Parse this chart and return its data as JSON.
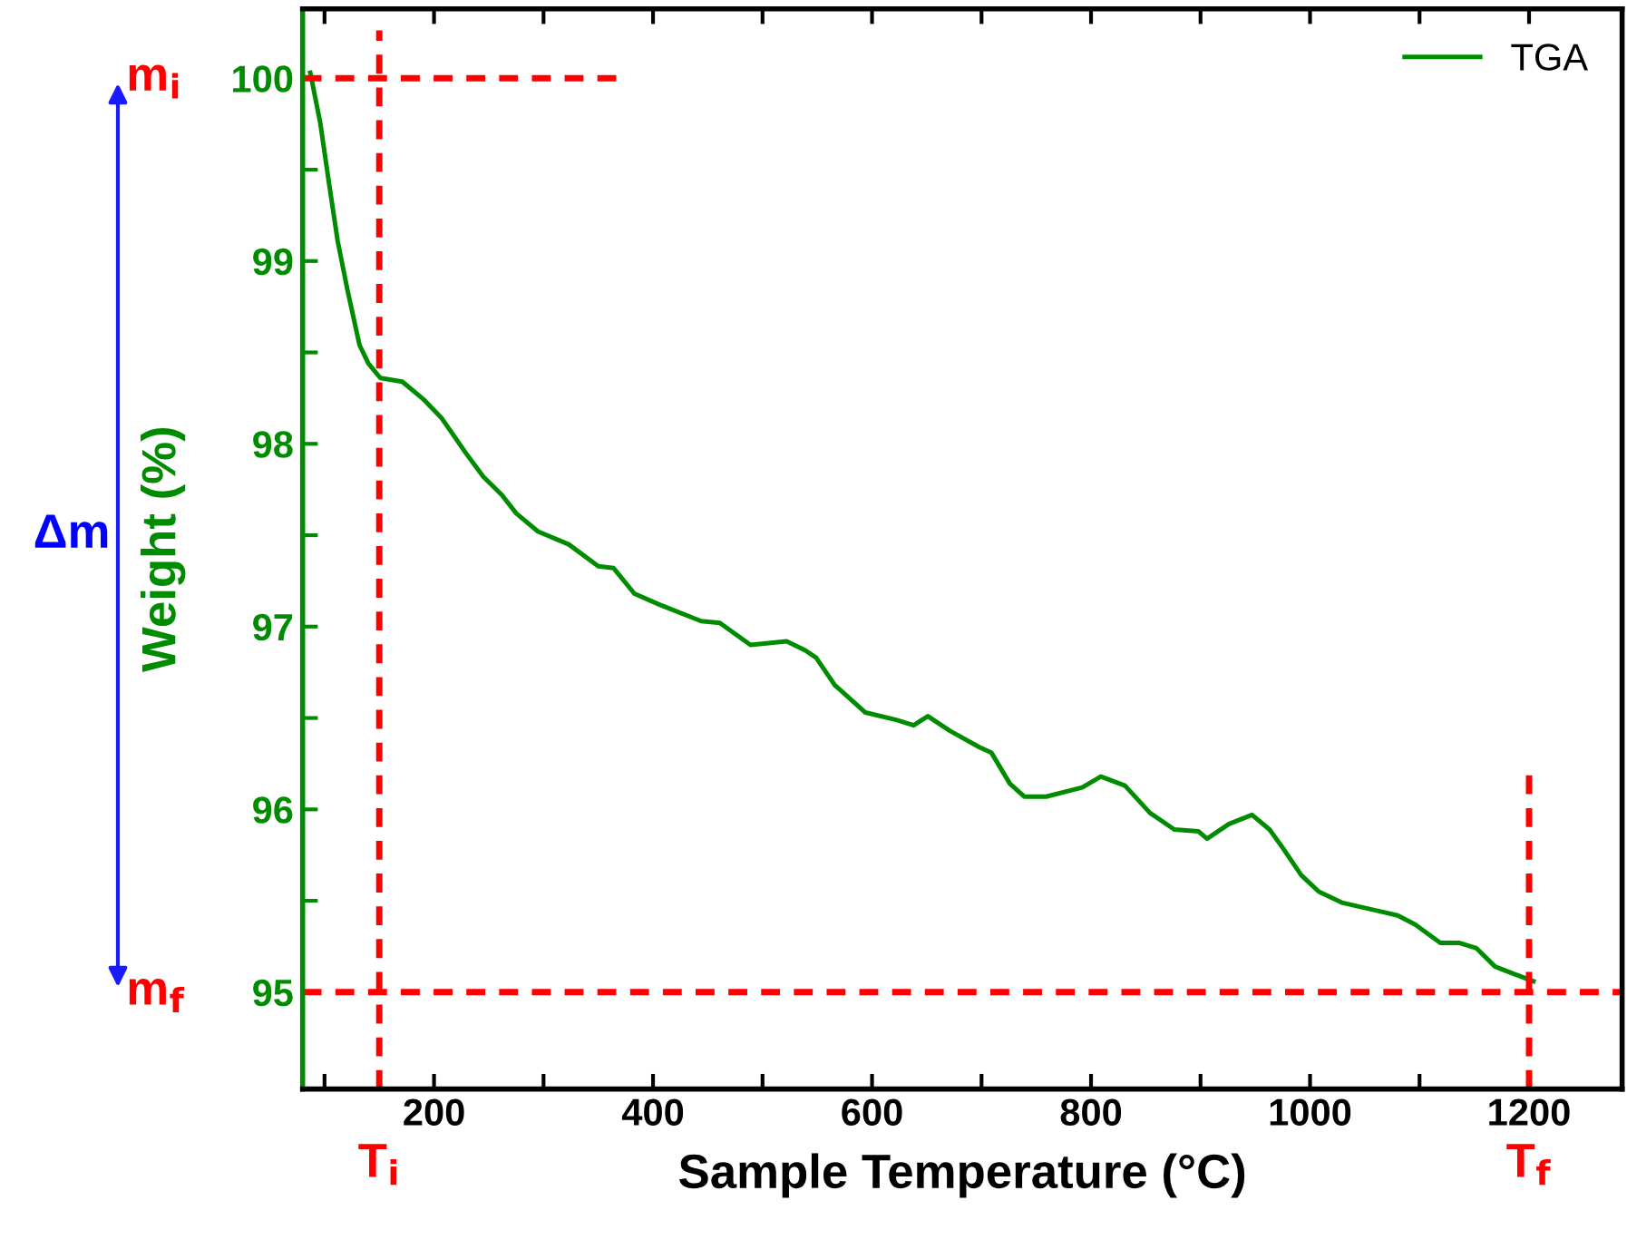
{
  "chart_data": {
    "type": "line",
    "xlabel": "Sample Temperature (°C)",
    "ylabel": "Weight (%)",
    "series": [
      {
        "name": "TGA",
        "color": "#008c00",
        "x": [
          87,
          96,
          104,
          112,
          121,
          132,
          140,
          151,
          171,
          191,
          207,
          229,
          245,
          262,
          275,
          295,
          323,
          350,
          364,
          383,
          406,
          444,
          461,
          489,
          522,
          539,
          549,
          566,
          594,
          622,
          638,
          651,
          671,
          698,
          709,
          726,
          739,
          759,
          792,
          809,
          831,
          854,
          876,
          898,
          906,
          926,
          947,
          963,
          975,
          992,
          1008,
          1029,
          1058,
          1080,
          1096,
          1119,
          1136,
          1152,
          1169,
          1186,
          1204
        ],
        "values": [
          100.03,
          99.76,
          99.43,
          99.11,
          98.84,
          98.54,
          98.44,
          98.36,
          98.34,
          98.24,
          98.14,
          97.95,
          97.82,
          97.72,
          97.62,
          97.52,
          97.45,
          97.33,
          97.32,
          97.18,
          97.12,
          97.03,
          97.02,
          96.9,
          96.92,
          96.87,
          96.83,
          96.68,
          96.53,
          96.49,
          96.46,
          96.51,
          96.43,
          96.34,
          96.31,
          96.14,
          96.07,
          96.07,
          96.12,
          96.18,
          96.13,
          95.98,
          95.89,
          95.88,
          95.84,
          95.92,
          95.97,
          95.89,
          95.79,
          95.64,
          95.55,
          95.49,
          95.45,
          95.42,
          95.37,
          95.27,
          95.27,
          95.24,
          95.14,
          95.1,
          95.06
        ]
      }
    ],
    "xlim": [
      80,
      1285
    ],
    "ylim": [
      94.47,
      100.38
    ],
    "xticks": [
      {
        "value": 100,
        "label": null
      },
      200,
      {
        "value": 300,
        "label": null
      },
      400,
      {
        "value": 500,
        "label": null
      },
      600,
      {
        "value": 700,
        "label": null
      },
      800,
      {
        "value": 900,
        "label": null
      },
      1000,
      {
        "value": 1100,
        "label": null
      },
      1200
    ],
    "yticks": [
      95,
      {
        "value": 95.5,
        "label": null
      },
      96,
      {
        "value": 96.5,
        "label": null
      },
      97,
      {
        "value": 97.5,
        "label": null
      },
      98,
      {
        "value": 98.5,
        "label": null
      },
      99,
      {
        "value": 99.5,
        "label": null
      },
      100
    ],
    "ref_lines": [
      {
        "axis": "y",
        "value": 100,
        "label": "m$_{i}$",
        "color": "#ff0000",
        "line_style": "dashed"
      },
      {
        "axis": "y",
        "value": 95,
        "label": "m$_{f}$",
        "color": "#ff0000",
        "line_style": "dashed"
      },
      {
        "axis": "x",
        "value": 150,
        "label": "T$_{i}$",
        "color": "#ff0000",
        "line_style": "dashed"
      },
      {
        "axis": "x",
        "value": 1200,
        "label": "T$_{f}$",
        "color": "#ff0000",
        "line_style": "dashed"
      }
    ],
    "annotations": [
      "Δm"
    ],
    "grid": false,
    "legend": "top right",
    "marker": "none",
    "line_style": "solid"
  }
}
